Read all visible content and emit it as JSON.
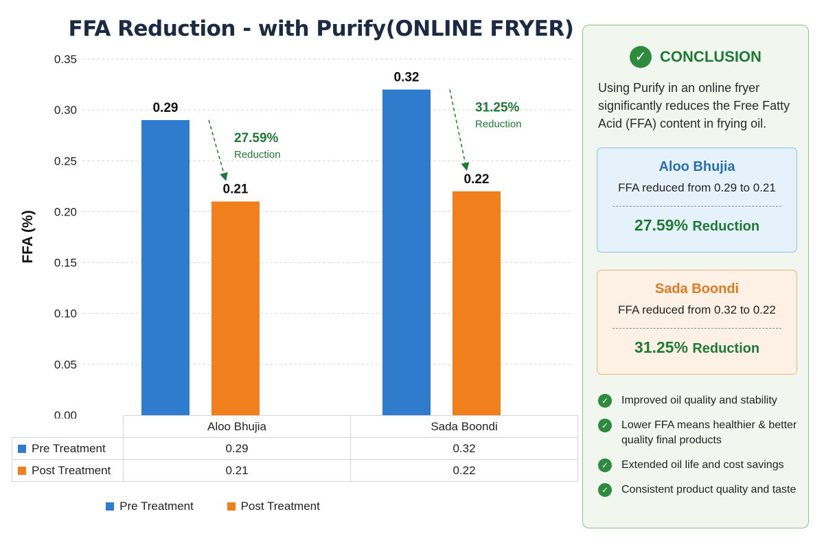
{
  "chart_data": {
    "type": "bar",
    "title": "FFA Reduction - with Purify(ONLINE FRYER)",
    "ylabel": "FFA (%)",
    "xlabel": "",
    "categories": [
      "Aloo Bhujia",
      "Sada Boondi"
    ],
    "series": [
      {
        "name": "Pre Treatment",
        "color": "#2f7ccf",
        "values": [
          0.29,
          0.32
        ],
        "value_labels": [
          "0.29",
          "0.32"
        ],
        "table_values": [
          "0.29",
          "0.32"
        ]
      },
      {
        "name": "Post Treatment",
        "color": "#f07f1c",
        "values": [
          0.21,
          0.22
        ],
        "value_labels": [
          "0.21",
          "0.22"
        ],
        "table_values": [
          "0.21",
          "0.22"
        ]
      }
    ],
    "ylim": [
      0,
      0.35
    ],
    "yticks": [
      0,
      0.05,
      0.1,
      0.15,
      0.2,
      0.25,
      0.3,
      0.35
    ],
    "ytick_labels": [
      "0.00",
      "0.05",
      "0.10",
      "0.15",
      "0.20",
      "0.25",
      "0.30",
      "0.35"
    ],
    "grid": true,
    "legend_position": "bottom",
    "annotations": [
      {
        "category": "Aloo Bhujia",
        "percent": "27.59%",
        "text": "Reduction"
      },
      {
        "category": "Sada Boondi",
        "percent": "31.25%",
        "text": "Reduction"
      }
    ],
    "annotation_color": "#1e7a34"
  },
  "conclusion": {
    "title": "CONCLUSION",
    "check_glyph": "✓",
    "text": "Using Purify in an online fryer significantly reduces the Free Fatty Acid (FFA) content in frying oil.",
    "boxes": [
      {
        "title": "Aloo Bhujia",
        "line": "FFA reduced from 0.29 to 0.21",
        "percent": "27.59%",
        "word": "Reduction"
      },
      {
        "title": "Sada Boondi",
        "line": "FFA reduced from 0.32 to 0.22",
        "percent": "31.25%",
        "word": "Reduction"
      }
    ],
    "benefits": [
      "Improved oil quality and stability",
      "Lower FFA means healthier & better quality final products",
      "Extended oil life and cost savings",
      "Consistent product quality and taste"
    ]
  },
  "icons": [
    "check-circle-icon"
  ]
}
